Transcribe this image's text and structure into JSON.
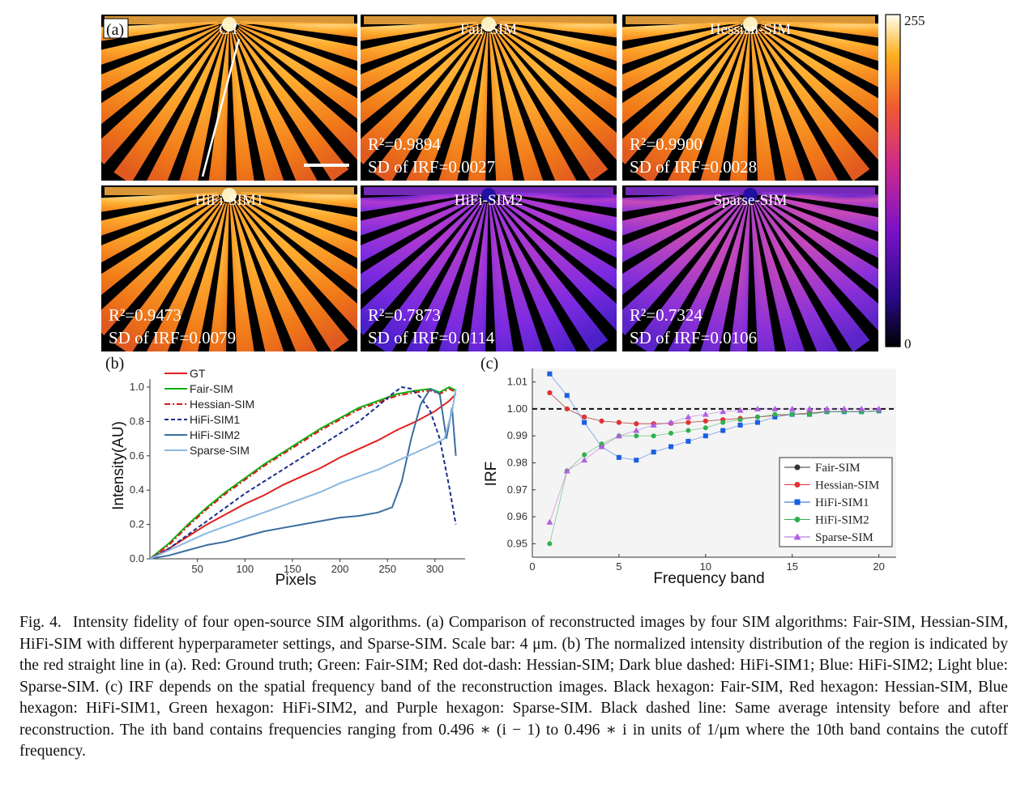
{
  "panel_a": {
    "label": "(a)",
    "colorbar": {
      "max": "255",
      "min": "0"
    },
    "scale_bar_text": "Scale bar: 4 μm",
    "images": [
      {
        "title": "GT",
        "r2": "",
        "sd": "",
        "style": "bright"
      },
      {
        "title": "Fair-SIM",
        "r2": "R²=0.9894",
        "sd": "SD of IRF=0.0027",
        "style": "bright"
      },
      {
        "title": "Hessian-SIM",
        "r2": "R²=0.9900",
        "sd": "SD of IRF=0.0028",
        "style": "bright"
      },
      {
        "title": "HiFi-SIM1",
        "r2": "R²=0.9473",
        "sd": "SD of IRF=0.0079",
        "style": "bright"
      },
      {
        "title": "HiFi-SIM2",
        "r2": "R²=0.7873",
        "sd": "SD of IRF=0.0114",
        "style": "dim"
      },
      {
        "title": "Sparse-SIM",
        "r2": "R²=0.7324",
        "sd": "SD of IRF=0.0106",
        "style": "dim2"
      }
    ]
  },
  "chart_data": [
    {
      "panel": "(b)",
      "type": "line",
      "title": "",
      "xlabel": "Pixels",
      "ylabel": "Intensity(AU)",
      "xlim": [
        0,
        330
      ],
      "ylim": [
        0,
        1.0
      ],
      "xticks": [
        "50",
        "100",
        "150",
        "200",
        "250",
        "300"
      ],
      "yticks": [
        "0.0",
        "0.2",
        "0.4",
        "0.6",
        "0.8",
        "1.0"
      ],
      "legend_position": "top-left",
      "series": [
        {
          "name": "GT",
          "color": "#e02020",
          "dash": "",
          "x": [
            0,
            20,
            40,
            60,
            80,
            100,
            120,
            140,
            160,
            180,
            200,
            220,
            240,
            260,
            280,
            300,
            315,
            322
          ],
          "y": [
            0.0,
            0.06,
            0.13,
            0.2,
            0.26,
            0.32,
            0.37,
            0.43,
            0.48,
            0.53,
            0.59,
            0.64,
            0.69,
            0.75,
            0.8,
            0.86,
            0.92,
            0.96
          ]
        },
        {
          "name": "Fair-SIM",
          "color": "#10b010",
          "dash": "",
          "x": [
            0,
            20,
            40,
            60,
            80,
            100,
            120,
            140,
            160,
            180,
            200,
            220,
            240,
            260,
            280,
            295,
            305,
            315,
            322
          ],
          "y": [
            0.0,
            0.09,
            0.2,
            0.3,
            0.39,
            0.47,
            0.55,
            0.62,
            0.69,
            0.76,
            0.82,
            0.88,
            0.92,
            0.96,
            0.98,
            0.99,
            0.97,
            1.0,
            0.98
          ]
        },
        {
          "name": "Hessian-SIM",
          "color": "#d81818",
          "dash": "7,3,2,3",
          "x": [
            0,
            20,
            40,
            60,
            80,
            100,
            120,
            140,
            160,
            180,
            200,
            220,
            240,
            260,
            280,
            295,
            305,
            315,
            322
          ],
          "y": [
            0.0,
            0.08,
            0.19,
            0.29,
            0.38,
            0.46,
            0.54,
            0.61,
            0.68,
            0.75,
            0.81,
            0.87,
            0.91,
            0.95,
            0.97,
            0.98,
            0.96,
            0.99,
            0.97
          ]
        },
        {
          "name": "HiFi-SIM1",
          "color": "#1a2e8a",
          "dash": "5,3",
          "x": [
            0,
            20,
            40,
            60,
            80,
            100,
            120,
            140,
            160,
            180,
            200,
            220,
            240,
            255,
            265,
            275,
            285,
            295,
            305,
            315,
            322
          ],
          "y": [
            0.0,
            0.06,
            0.14,
            0.22,
            0.3,
            0.38,
            0.45,
            0.52,
            0.59,
            0.66,
            0.73,
            0.8,
            0.89,
            0.96,
            1.0,
            0.99,
            0.94,
            0.86,
            0.7,
            0.42,
            0.2
          ]
        },
        {
          "name": "HiFi-SIM2",
          "color": "#3a6ea0",
          "dash": "",
          "x": [
            0,
            20,
            40,
            60,
            80,
            100,
            120,
            140,
            160,
            180,
            200,
            220,
            240,
            255,
            265,
            275,
            285,
            295,
            305,
            312,
            318,
            322
          ],
          "y": [
            0.0,
            0.02,
            0.05,
            0.08,
            0.1,
            0.13,
            0.16,
            0.18,
            0.2,
            0.22,
            0.24,
            0.25,
            0.27,
            0.3,
            0.45,
            0.7,
            0.9,
            0.99,
            0.96,
            0.7,
            0.88,
            0.6
          ]
        },
        {
          "name": "Sparse-SIM",
          "color": "#8ab8e0",
          "dash": "",
          "x": [
            0,
            20,
            40,
            60,
            80,
            100,
            120,
            140,
            160,
            180,
            200,
            220,
            240,
            260,
            280,
            300,
            310,
            318,
            322
          ],
          "y": [
            0.0,
            0.05,
            0.1,
            0.15,
            0.19,
            0.23,
            0.27,
            0.31,
            0.35,
            0.39,
            0.44,
            0.48,
            0.52,
            0.57,
            0.62,
            0.67,
            0.7,
            0.86,
            0.99
          ]
        }
      ]
    },
    {
      "panel": "(c)",
      "type": "scatter",
      "title": "",
      "xlabel": "Frequency band",
      "ylabel": "IRF",
      "xlim": [
        0,
        21
      ],
      "ylim": [
        0.945,
        1.015
      ],
      "xticks": [
        "0",
        "5",
        "10",
        "15",
        "20"
      ],
      "yticks": [
        "0.95",
        "0.96",
        "0.97",
        "0.98",
        "0.99",
        "1.00",
        "1.01"
      ],
      "reference_line": 1.0,
      "legend_position": "right",
      "x": [
        1,
        2,
        3,
        4,
        5,
        6,
        7,
        8,
        9,
        10,
        11,
        12,
        13,
        14,
        15,
        16,
        17,
        18,
        19,
        20
      ],
      "series": [
        {
          "name": "Fair-SIM",
          "color": "#333333",
          "marker": "circle",
          "values": [
            1.006,
            1.0,
            0.997,
            0.9955,
            0.995,
            0.9945,
            0.9945,
            0.9947,
            0.995,
            0.9955,
            0.996,
            0.9965,
            0.997,
            0.9975,
            0.998,
            0.9985,
            0.999,
            0.999,
            0.999,
            0.9993
          ]
        },
        {
          "name": "Hessian-SIM",
          "color": "#e83030",
          "marker": "circle",
          "values": [
            1.006,
            1.0,
            0.997,
            0.9955,
            0.995,
            0.9945,
            0.9945,
            0.9947,
            0.995,
            0.9955,
            0.996,
            0.9965,
            0.997,
            0.9975,
            0.998,
            0.9985,
            0.999,
            0.999,
            0.999,
            0.9993
          ]
        },
        {
          "name": "HiFi-SIM1",
          "color": "#1a5fe0",
          "marker": "square",
          "values": [
            1.013,
            1.005,
            0.995,
            0.986,
            0.982,
            0.981,
            0.984,
            0.986,
            0.988,
            0.99,
            0.992,
            0.994,
            0.995,
            0.997,
            0.998,
            0.998,
            0.999,
            0.999,
            0.999,
            0.9993
          ]
        },
        {
          "name": "HiFi-SIM2",
          "color": "#30b050",
          "marker": "circle",
          "values": [
            0.95,
            0.977,
            0.983,
            0.987,
            0.99,
            0.99,
            0.99,
            0.991,
            0.992,
            0.993,
            0.995,
            0.996,
            0.997,
            0.998,
            0.998,
            0.998,
            0.999,
            0.999,
            0.999,
            0.9993
          ]
        },
        {
          "name": "Sparse-SIM",
          "color": "#b060e0",
          "marker": "triangle",
          "values": [
            0.958,
            0.977,
            0.981,
            0.986,
            0.99,
            0.992,
            0.994,
            0.995,
            0.997,
            0.998,
            0.999,
            0.9995,
            1.0,
            1.0,
            1.0,
            1.0,
            1.0,
            1.0,
            1.0,
            1.0
          ]
        }
      ]
    }
  ],
  "caption": {
    "figure_label": "Fig. 4.",
    "text": "Intensity fidelity of four open-source SIM algorithms. (a) Comparison of reconstructed images by four SIM algorithms: Fair-SIM, Hessian-SIM, HiFi-SIM with different hyperparameter settings, and Sparse-SIM. Scale bar: 4 μm. (b) The normalized intensity distribution of the region is indicated by the red straight line in (a). Red: Ground truth; Green: Fair-SIM; Red dot-dash: Hessian-SIM; Dark blue dashed: HiFi-SIM1; Blue: HiFi-SIM2; Light blue: Sparse-SIM. (c) IRF depends on the spatial frequency band of the reconstruction images. Black hexagon: Fair-SIM, Red hexagon: Hessian-SIM, Blue hexagon: HiFi-SIM1, Green hexagon: HiFi-SIM2, and Purple hexagon: Sparse-SIM. Black dashed line: Same average intensity before and after reconstruction. The ith band contains frequencies ranging from 0.496 ∗ (i − 1) to 0.496 ∗ i in units of 1/μm where the 10th band contains the cutoff frequency."
  }
}
